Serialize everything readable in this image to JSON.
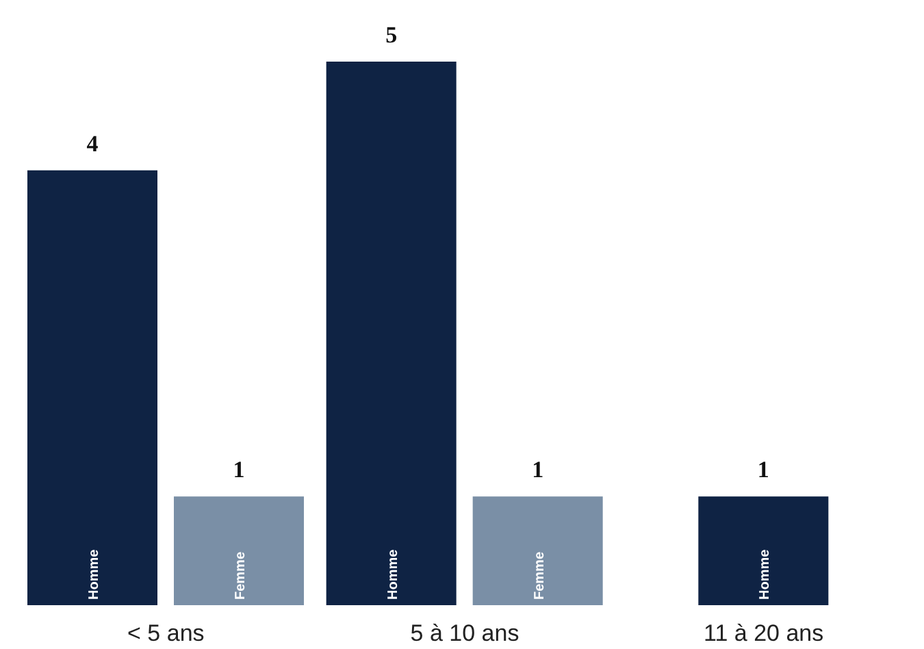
{
  "chart_data": {
    "type": "bar",
    "categories": [
      "< 5 ans",
      "5 à 10 ans",
      "11 à 20 ans"
    ],
    "series": [
      {
        "name": "Homme",
        "color": "#0f2344",
        "values": [
          4,
          5,
          1
        ]
      },
      {
        "name": "Femme",
        "color": "#7a8fa6",
        "values": [
          1,
          1,
          null
        ]
      }
    ],
    "data_labels": true
  }
}
